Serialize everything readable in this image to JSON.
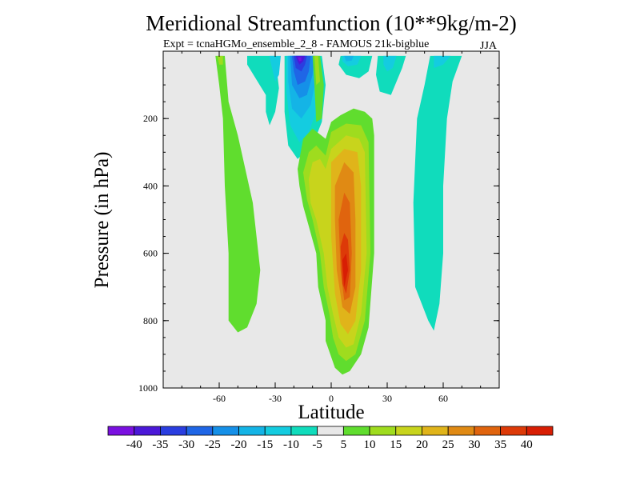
{
  "chart_data": {
    "type": "contour",
    "title": "Meridional Streamfunction (10**9kg/m-2)",
    "subtitle": "Expt = tcnaHGMo_ensemble_2_8 - FAMOUS 21k-bigblue",
    "season": "JJA",
    "xlabel": "Latitude",
    "ylabel": "Pressure (in hPa)",
    "xlim": [
      -90,
      90
    ],
    "ylim": [
      1000,
      0
    ],
    "x_ticks": [
      -60,
      -30,
      0,
      30,
      60
    ],
    "x_tick_labels": [
      "-60",
      "-30",
      "0",
      "30",
      "60"
    ],
    "y_ticks": [
      200,
      400,
      600,
      800,
      1000
    ],
    "y_tick_labels": [
      "200",
      "400",
      "600",
      "800",
      "1000"
    ],
    "colorbar": {
      "labels": [
        "-40",
        "-35",
        "-30",
        "-25",
        "-20",
        "-15",
        "-10",
        "-5",
        "5",
        "10",
        "15",
        "20",
        "25",
        "30",
        "35",
        "40"
      ],
      "colors": [
        "#7a10e0",
        "#4b18d8",
        "#2a3ee0",
        "#1f66e6",
        "#1590e8",
        "#14b4e6",
        "#14cce0",
        "#10dcbc",
        "#e8e8e8",
        "#60dd2e",
        "#9fdc1e",
        "#c8d41c",
        "#e0b41a",
        "#e08a14",
        "#e0640e",
        "#dd3a08",
        "#d81e04"
      ]
    },
    "cells": [
      {
        "name": "nh-neg-cell",
        "fill": "#10dcbc",
        "points": [
          [
            -35,
            130
          ],
          [
            -45,
            40
          ],
          [
            -45,
            14
          ],
          [
            -30,
            14
          ],
          [
            -28,
            110
          ],
          [
            -30,
            180
          ],
          [
            -33,
            220
          ],
          [
            -35,
            180
          ]
        ]
      },
      {
        "name": "nh-neg-cell",
        "fill": "#14cce0",
        "points": [
          [
            -33,
            20
          ],
          [
            -33,
            14
          ],
          [
            -27,
            14
          ],
          [
            -28,
            70
          ],
          [
            -30,
            90
          ]
        ]
      },
      {
        "name": "tropical-neg-cell",
        "fill": "#10dcbc",
        "points": [
          [
            -25,
            14
          ],
          [
            -5,
            14
          ],
          [
            -3,
            100
          ],
          [
            -5,
            210
          ],
          [
            -10,
            280
          ],
          [
            -18,
            320
          ],
          [
            -23,
            280
          ],
          [
            -25,
            180
          ]
        ]
      },
      {
        "name": "tropical-neg-cell",
        "fill": "#14cce0",
        "points": [
          [
            -24,
            14
          ],
          [
            -7,
            14
          ],
          [
            -6,
            90
          ],
          [
            -8,
            180
          ],
          [
            -12,
            240
          ],
          [
            -17,
            270
          ],
          [
            -22,
            220
          ],
          [
            -24,
            120
          ]
        ]
      },
      {
        "name": "tropical-neg-cell",
        "fill": "#14b4e6",
        "points": [
          [
            -23,
            14
          ],
          [
            -8,
            14
          ],
          [
            -8,
            80
          ],
          [
            -11,
            160
          ],
          [
            -16,
            200
          ],
          [
            -21,
            170
          ],
          [
            -23,
            90
          ]
        ]
      },
      {
        "name": "tropical-neg-cell",
        "fill": "#1590e8",
        "points": [
          [
            -22,
            14
          ],
          [
            -9,
            14
          ],
          [
            -10,
            70
          ],
          [
            -13,
            130
          ],
          [
            -17,
            140
          ],
          [
            -21,
            100
          ]
        ]
      },
      {
        "name": "tropical-neg-cell",
        "fill": "#1f66e6",
        "points": [
          [
            -21,
            14
          ],
          [
            -11,
            14
          ],
          [
            -12,
            60
          ],
          [
            -14,
            90
          ],
          [
            -18,
            100
          ],
          [
            -20,
            60
          ]
        ]
      },
      {
        "name": "tropical-neg-cell",
        "fill": "#2a3ee0",
        "points": [
          [
            -20,
            14
          ],
          [
            -13,
            14
          ],
          [
            -14,
            40
          ],
          [
            -16,
            60
          ],
          [
            -19,
            50
          ]
        ]
      },
      {
        "name": "tropical-neg-cell",
        "fill": "#4b18d8",
        "points": [
          [
            -19,
            14
          ],
          [
            -14,
            14
          ],
          [
            -15,
            30
          ],
          [
            -17,
            40
          ],
          [
            -18,
            30
          ]
        ]
      },
      {
        "name": "tropical-neg-cell",
        "fill": "#7a10e0",
        "points": [
          [
            -18,
            18
          ],
          [
            -16,
            18
          ],
          [
            -16,
            28
          ],
          [
            -17,
            30
          ]
        ]
      },
      {
        "name": "north-neg-cell",
        "fill": "#10dcbc",
        "points": [
          [
            5,
            14
          ],
          [
            22,
            14
          ],
          [
            20,
            60
          ],
          [
            15,
            80
          ],
          [
            8,
            70
          ],
          [
            4,
            40
          ]
        ]
      },
      {
        "name": "north-neg-cell",
        "fill": "#14cce0",
        "points": [
          [
            6,
            14
          ],
          [
            16,
            14
          ],
          [
            14,
            40
          ],
          [
            9,
            45
          ],
          [
            6,
            30
          ]
        ]
      },
      {
        "name": "north-neg-cell",
        "fill": "#14b4e6",
        "points": [
          [
            7,
            14
          ],
          [
            12,
            14
          ],
          [
            11,
            28
          ],
          [
            8,
            30
          ]
        ]
      },
      {
        "name": "cyan-plume",
        "fill": "#10dcbc",
        "points": [
          [
            25,
            14
          ],
          [
            40,
            14
          ],
          [
            38,
            50
          ],
          [
            32,
            130
          ],
          [
            26,
            120
          ],
          [
            24,
            70
          ]
        ]
      },
      {
        "name": "cyan-plume",
        "fill": "#14cce0",
        "points": [
          [
            28,
            14
          ],
          [
            35,
            14
          ],
          [
            33,
            50
          ],
          [
            30,
            60
          ],
          [
            28,
            40
          ]
        ]
      },
      {
        "name": "southern-neg-cell",
        "fill": "#10dcbc",
        "points": [
          [
            53,
            14
          ],
          [
            70,
            14
          ],
          [
            65,
            90
          ],
          [
            62,
            200
          ],
          [
            60,
            400
          ],
          [
            60,
            600
          ],
          [
            58,
            750
          ],
          [
            55,
            830
          ],
          [
            52,
            800
          ],
          [
            45,
            700
          ],
          [
            44,
            450
          ],
          [
            46,
            200
          ],
          [
            50,
            100
          ]
        ]
      },
      {
        "name": "southern-neg-cell",
        "fill": "#14cce0",
        "points": [
          [
            55,
            14
          ],
          [
            64,
            14
          ],
          [
            60,
            40
          ],
          [
            55,
            50
          ]
        ]
      },
      {
        "name": "nh-pos-cell",
        "fill": "#60dd2e",
        "points": [
          [
            -62,
            14
          ],
          [
            -57,
            14
          ],
          [
            -55,
            150
          ],
          [
            -50,
            250
          ],
          [
            -42,
            450
          ],
          [
            -38,
            650
          ],
          [
            -40,
            750
          ],
          [
            -45,
            820
          ],
          [
            -50,
            835
          ],
          [
            -55,
            800
          ],
          [
            -55,
            600
          ],
          [
            -57,
            400
          ],
          [
            -58,
            200
          ],
          [
            -60,
            100
          ]
        ]
      },
      {
        "name": "nh-pos-cell",
        "fill": "#9fdc1e",
        "points": [
          [
            -61,
            14
          ],
          [
            -58,
            14
          ],
          [
            -58,
            40
          ],
          [
            -60,
            40
          ]
        ]
      },
      {
        "name": "narrow-pos-plume",
        "fill": "#60dd2e",
        "points": [
          [
            -10,
            14
          ],
          [
            -6,
            14
          ],
          [
            -4,
            100
          ],
          [
            -5,
            200
          ],
          [
            -8,
            210
          ],
          [
            -9,
            100
          ]
        ]
      },
      {
        "name": "narrow-pos-plume",
        "fill": "#9fdc1e",
        "points": [
          [
            -9,
            14
          ],
          [
            -7,
            14
          ],
          [
            -6,
            90
          ],
          [
            -8,
            100
          ]
        ]
      },
      {
        "name": "tropical-pos-cell",
        "fill": "#60dd2e",
        "points": [
          [
            -18,
            350
          ],
          [
            -15,
            260
          ],
          [
            -10,
            230
          ],
          [
            -3,
            260
          ],
          [
            0,
            210
          ],
          [
            5,
            190
          ],
          [
            12,
            170
          ],
          [
            18,
            180
          ],
          [
            22,
            200
          ],
          [
            23,
            250
          ],
          [
            23,
            600
          ],
          [
            20,
            820
          ],
          [
            16,
            900
          ],
          [
            10,
            950
          ],
          [
            6,
            960
          ],
          [
            2,
            940
          ],
          [
            -3,
            860
          ],
          [
            -3,
            800
          ],
          [
            -7,
            700
          ],
          [
            -8,
            600
          ],
          [
            -12,
            520
          ],
          [
            -15,
            460
          ],
          [
            -17,
            400
          ]
        ]
      },
      {
        "name": "tropical-pos-cell",
        "fill": "#9fdc1e",
        "points": [
          [
            -15,
            360
          ],
          [
            -12,
            300
          ],
          [
            -8,
            280
          ],
          [
            -3,
            310
          ],
          [
            0,
            240
          ],
          [
            8,
            215
          ],
          [
            16,
            220
          ],
          [
            20,
            270
          ],
          [
            21,
            600
          ],
          [
            18,
            800
          ],
          [
            13,
            900
          ],
          [
            8,
            920
          ],
          [
            4,
            900
          ],
          [
            1,
            850
          ],
          [
            -1,
            780
          ],
          [
            -4,
            700
          ],
          [
            -6,
            600
          ],
          [
            -10,
            500
          ],
          [
            -13,
            440
          ]
        ]
      },
      {
        "name": "tropical-pos-cell",
        "fill": "#c8d41c",
        "points": [
          [
            -12,
            380
          ],
          [
            -10,
            330
          ],
          [
            -6,
            320
          ],
          [
            -3,
            350
          ],
          [
            0,
            290
          ],
          [
            8,
            250
          ],
          [
            15,
            260
          ],
          [
            18,
            300
          ],
          [
            19,
            600
          ],
          [
            16,
            780
          ],
          [
            12,
            870
          ],
          [
            8,
            880
          ],
          [
            4,
            850
          ],
          [
            1,
            780
          ],
          [
            -2,
            700
          ],
          [
            -4,
            600
          ],
          [
            -8,
            500
          ],
          [
            -11,
            450
          ]
        ]
      },
      {
        "name": "tropical-pos-cell",
        "fill": "#e0b41a",
        "points": [
          [
            0,
            330
          ],
          [
            7,
            290
          ],
          [
            14,
            300
          ],
          [
            16,
            400
          ],
          [
            16,
            650
          ],
          [
            13,
            800
          ],
          [
            9,
            840
          ],
          [
            5,
            810
          ],
          [
            2,
            720
          ],
          [
            0,
            550
          ]
        ]
      },
      {
        "name": "tropical-pos-cell",
        "fill": "#e08a14",
        "points": [
          [
            2,
            400
          ],
          [
            7,
            330
          ],
          [
            12,
            360
          ],
          [
            13,
            500
          ],
          [
            13,
            700
          ],
          [
            10,
            780
          ],
          [
            6,
            760
          ],
          [
            3,
            650
          ],
          [
            2,
            500
          ]
        ]
      },
      {
        "name": "tropical-pos-cell",
        "fill": "#e0640e",
        "points": [
          [
            4,
            500
          ],
          [
            7,
            420
          ],
          [
            10,
            450
          ],
          [
            11,
            600
          ],
          [
            10,
            730
          ],
          [
            7,
            740
          ],
          [
            5,
            650
          ]
        ]
      },
      {
        "name": "tropical-pos-cell",
        "fill": "#dd3a08",
        "points": [
          [
            5,
            580
          ],
          [
            7,
            540
          ],
          [
            9,
            560
          ],
          [
            10,
            650
          ],
          [
            8,
            720
          ],
          [
            6,
            690
          ]
        ]
      },
      {
        "name": "tropical-pos-cell",
        "fill": "#d81e04",
        "points": [
          [
            6,
            620
          ],
          [
            8,
            600
          ],
          [
            9,
            650
          ],
          [
            7,
            700
          ]
        ]
      }
    ]
  }
}
